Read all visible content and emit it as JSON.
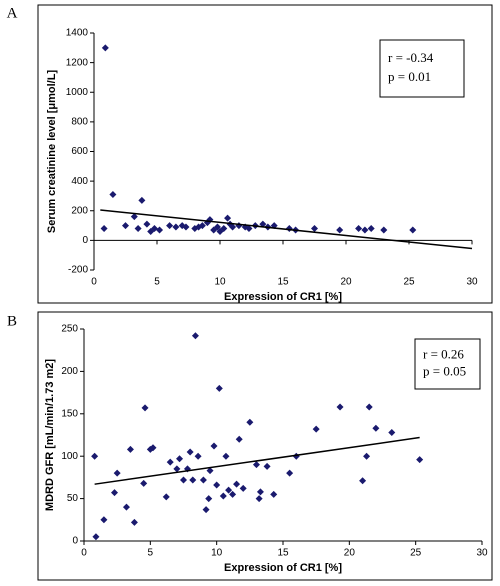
{
  "chart_data": [
    {
      "type": "scatter",
      "panel": "A",
      "xlabel": "Expression of CR1 [%]",
      "ylabel": "Serum creatinine level [μmol/L]",
      "annotations": [
        "r = -0.34",
        "p = 0.01"
      ],
      "color": "#1a1a6e",
      "x": [
        0.8,
        0.9,
        1.5,
        2.5,
        3.2,
        3.5,
        3.8,
        4.2,
        4.5,
        4.8,
        5.2,
        6,
        6.5,
        7,
        7.3,
        8,
        8.3,
        8.6,
        9,
        9.2,
        9.5,
        9.8,
        10,
        10.3,
        10.6,
        10.8,
        11,
        11.5,
        12,
        12.3,
        12.8,
        13.4,
        13.8,
        14.3,
        15.5,
        16,
        17.5,
        19.5,
        21,
        21.5,
        22,
        23,
        25.3
      ],
      "y": [
        80,
        1300,
        310,
        100,
        160,
        80,
        270,
        110,
        60,
        80,
        70,
        100,
        90,
        100,
        90,
        80,
        90,
        100,
        120,
        140,
        70,
        90,
        60,
        80,
        150,
        110,
        90,
        100,
        90,
        80,
        100,
        110,
        90,
        100,
        80,
        70,
        80,
        70,
        80,
        70,
        80,
        70,
        70
      ],
      "trendline": {
        "x": [
          0.5,
          30
        ],
        "y": [
          205,
          -55
        ]
      },
      "xlim": [
        0,
        30
      ],
      "ylim": [
        -200,
        1400
      ],
      "xticks": [
        0,
        5,
        10,
        15,
        20,
        25,
        30
      ],
      "yticks": [
        -200,
        0,
        200,
        400,
        600,
        800,
        1000,
        1200,
        1400
      ]
    },
    {
      "type": "scatter",
      "panel": "B",
      "xlabel": "Expression of CR1 [%]",
      "ylabel": "MDRD GFR [mL/min/1.73 m2]",
      "annotations": [
        "r = 0.26",
        "p = 0.05"
      ],
      "color": "#1a1a6e",
      "x": [
        0.8,
        0.9,
        1.5,
        2.3,
        2.5,
        3.2,
        3.5,
        3.8,
        4.5,
        4.6,
        5,
        5.2,
        6.2,
        6.5,
        7,
        7.2,
        7.5,
        7.8,
        8,
        8.2,
        8.4,
        8.6,
        9,
        9.2,
        9.4,
        9.5,
        9.8,
        10,
        10.2,
        10.5,
        10.7,
        10.9,
        11.2,
        11.5,
        11.7,
        12,
        12.5,
        13,
        13.2,
        13.3,
        13.8,
        14.3,
        15.5,
        16,
        17.5,
        19.3,
        21,
        21.3,
        21.5,
        22,
        23.2,
        25.3
      ],
      "y": [
        100,
        5,
        25,
        57,
        80,
        40,
        108,
        22,
        68,
        157,
        108,
        110,
        52,
        93,
        85,
        97,
        72,
        85,
        105,
        72,
        242,
        100,
        72,
        37,
        50,
        83,
        112,
        66,
        180,
        53,
        100,
        60,
        55,
        67,
        120,
        62,
        140,
        90,
        50,
        58,
        88,
        55,
        80,
        100,
        132,
        158,
        71,
        100,
        158,
        133,
        128,
        96
      ],
      "trendline": {
        "x": [
          0.8,
          25.3
        ],
        "y": [
          67,
          122
        ]
      },
      "xlim": [
        0,
        30
      ],
      "ylim": [
        0,
        250
      ],
      "xticks": [
        0,
        5,
        10,
        15,
        20,
        25,
        30
      ],
      "yticks": [
        0,
        50,
        100,
        150,
        200,
        250
      ]
    }
  ]
}
